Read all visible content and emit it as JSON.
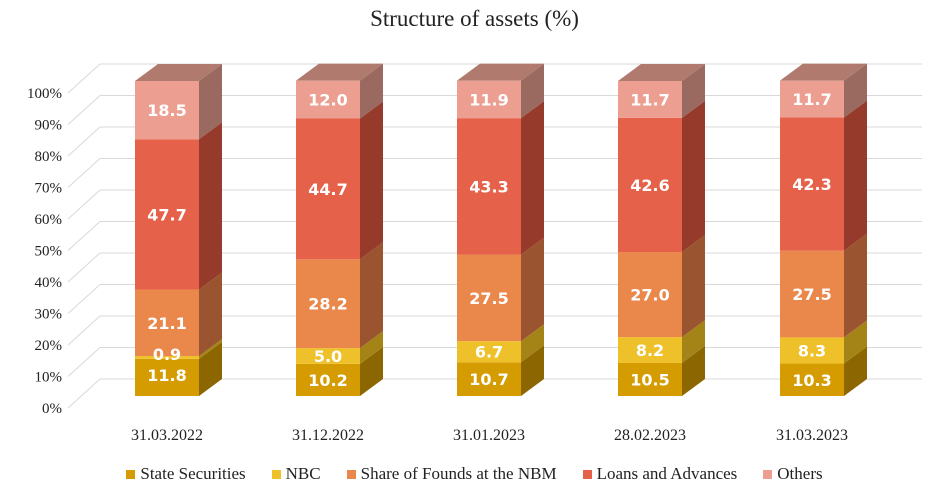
{
  "chart_data": {
    "type": "bar",
    "stacked": true,
    "three_d": true,
    "title": "Structure of assets (%)",
    "xlabel": "",
    "ylabel": "",
    "ylim": [
      0,
      100
    ],
    "yticks": [
      "0%",
      "10%",
      "20%",
      "30%",
      "40%",
      "50%",
      "60%",
      "70%",
      "80%",
      "90%",
      "100%"
    ],
    "categories": [
      "31.03.2022",
      "31.12.2022",
      "31.01.2023",
      "28.02.2023",
      "31.03.2023"
    ],
    "series": [
      {
        "name": "State Securities",
        "color": "#D49C00",
        "side": "#8C6600",
        "values": [
          11.8,
          10.2,
          10.7,
          10.5,
          10.3
        ],
        "labels": [
          "11.8",
          "10.2",
          "10.7",
          "10.5",
          "10.3"
        ]
      },
      {
        "name": "NBC",
        "color": "#EEC12A",
        "side": "#A58417",
        "values": [
          0.9,
          5.0,
          6.7,
          8.2,
          8.3
        ],
        "labels": [
          "0.9",
          "5.0",
          "6.7",
          "8.2",
          "8.3"
        ]
      },
      {
        "name": "Share of Founds at the NBM",
        "color": "#EA874B",
        "side": "#9A5530",
        "values": [
          21.1,
          28.2,
          27.5,
          27.0,
          27.5
        ],
        "labels": [
          "21.1",
          "28.2",
          "27.5",
          "27.0",
          "27.5"
        ]
      },
      {
        "name": "Loans and Advances",
        "color": "#E5614A",
        "side": "#963A2C",
        "values": [
          47.7,
          44.7,
          43.3,
          42.6,
          42.3
        ],
        "labels": [
          "47.7",
          "44.7",
          "43.3",
          "42.6",
          "42.3"
        ]
      },
      {
        "name": "Others",
        "color": "#EC9E91",
        "side": "#9A6A60",
        "values": [
          18.5,
          12.0,
          11.9,
          11.7,
          11.7
        ],
        "labels": [
          "18.5",
          "12.0",
          "11.9",
          "11.7",
          "11.7"
        ]
      }
    ],
    "legend_position": "bottom",
    "grid": true
  }
}
